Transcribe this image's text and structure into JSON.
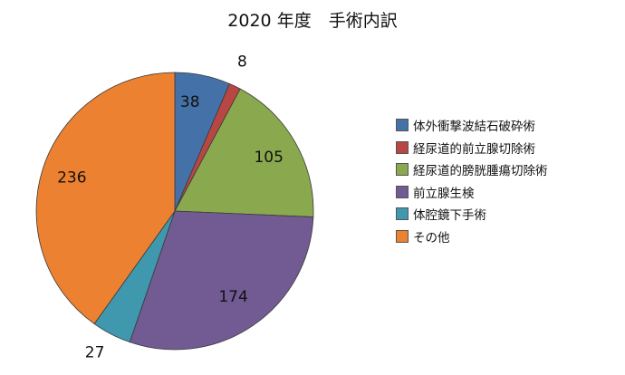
{
  "chart_data": {
    "type": "pie",
    "title": "2020 年度　手術内訳",
    "categories": [
      "体外衝撃波結石破砕術",
      "経尿道的前立腺切除術",
      "経尿道的膀胱腫瘍切除術",
      "前立腺生検",
      "体腔鏡下手術",
      "その他"
    ],
    "values": [
      38,
      8,
      105,
      174,
      27,
      236
    ],
    "colors": [
      "#4472a8",
      "#b84744",
      "#8aa84e",
      "#725a93",
      "#3f98ae",
      "#ec8131"
    ],
    "start_angle": "12 o'clock",
    "direction": "clockwise",
    "legend_position": "right"
  }
}
